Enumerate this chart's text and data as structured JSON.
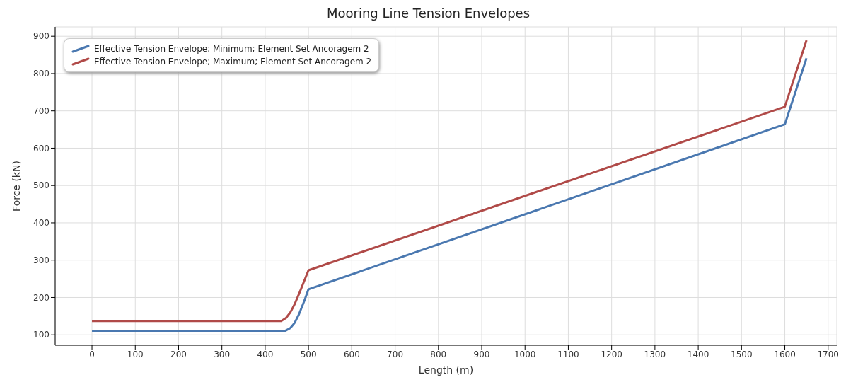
{
  "chart_data": {
    "type": "line",
    "title": "Mooring Line Tension Envelopes",
    "xlabel": "Length (m)",
    "ylabel": "Force (kN)",
    "xlim": [
      -85,
      1720
    ],
    "xticks": [
      0,
      100,
      200,
      300,
      400,
      500,
      600,
      700,
      800,
      900,
      1000,
      1100,
      1200,
      1300,
      1400,
      1500,
      1600,
      1700
    ],
    "ylim": [
      72,
      925
    ],
    "yticks": [
      100,
      200,
      300,
      400,
      500,
      600,
      700,
      800,
      900
    ],
    "grid": true,
    "legend": "top left",
    "marker": "none",
    "line_style": "solid",
    "series": [
      {
        "name": "Effective Tension Envelope; Minimum; Element Set Ancoragem 2",
        "color": "#4a78b0",
        "x": [
          0,
          447,
          458,
          468,
          478,
          490,
          500,
          1600,
          1650
        ],
        "values": [
          111,
          111,
          118,
          132,
          155,
          190,
          222,
          664,
          841
        ]
      },
      {
        "name": "Effective Tension Envelope; Maximum; Element Set Ancoragem 2",
        "color": "#b04a48",
        "x": [
          0,
          437,
          448,
          458,
          468,
          480,
          500,
          1600,
          1650
        ],
        "values": [
          137,
          137,
          145,
          160,
          182,
          215,
          273,
          711,
          889
        ]
      }
    ]
  }
}
